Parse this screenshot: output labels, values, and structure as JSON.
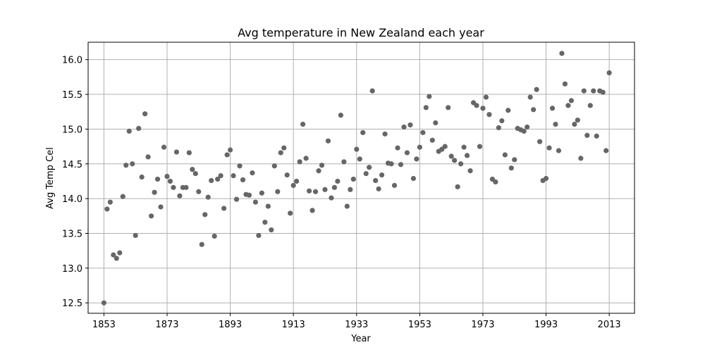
{
  "chart_data": {
    "type": "scatter",
    "title": "Avg temperature in New Zealand each year",
    "xlabel": "Year",
    "ylabel": "Avg Temp Cel",
    "xlim": [
      1848,
      2021
    ],
    "ylim": [
      12.35,
      16.25
    ],
    "xticks": [
      1853,
      1873,
      1893,
      1913,
      1933,
      1953,
      1973,
      1993,
      2013
    ],
    "yticks": [
      12.5,
      13.0,
      13.5,
      14.0,
      14.5,
      15.0,
      15.5,
      16.0
    ],
    "ytick_labels": [
      "12.5",
      "13.0",
      "13.5",
      "14.0",
      "14.5",
      "15.0",
      "15.5",
      "16.0"
    ],
    "grid": true,
    "marker_color": "#666666",
    "series": [
      {
        "x": [
          1853,
          1854,
          1855,
          1856,
          1857,
          1858,
          1859,
          1860,
          1861,
          1862,
          1863,
          1864,
          1865,
          1866,
          1867,
          1868,
          1869,
          1870,
          1871,
          1872,
          1873,
          1874,
          1875,
          1876,
          1877,
          1878,
          1879,
          1880,
          1881,
          1882,
          1883,
          1884,
          1885,
          1886,
          1887,
          1888,
          1889,
          1890,
          1891,
          1892,
          1893,
          1894,
          1895,
          1896,
          1897,
          1898,
          1899,
          1900,
          1901,
          1902,
          1903,
          1904,
          1905,
          1906,
          1907,
          1908,
          1909,
          1910,
          1911,
          1912,
          1913,
          1914,
          1915,
          1916,
          1917,
          1918,
          1919,
          1920,
          1921,
          1922,
          1923,
          1924,
          1925,
          1926,
          1927,
          1928,
          1929,
          1930,
          1931,
          1932,
          1933,
          1934,
          1935,
          1936,
          1937,
          1938,
          1939,
          1940,
          1941,
          1942,
          1943,
          1944,
          1945,
          1946,
          1947,
          1948,
          1949,
          1950,
          1951,
          1952,
          1953,
          1954,
          1955,
          1956,
          1957,
          1958,
          1959,
          1960,
          1961,
          1962,
          1963,
          1964,
          1965,
          1966,
          1967,
          1968,
          1969,
          1970,
          1971,
          1972,
          1973,
          1974,
          1975,
          1976,
          1977,
          1978,
          1979,
          1980,
          1981,
          1982,
          1983,
          1984,
          1985,
          1986,
          1987,
          1988,
          1989,
          1990,
          1991,
          1992,
          1993,
          1994,
          1995,
          1996,
          1997,
          1998,
          1999,
          2000,
          2001,
          2002,
          2003,
          2004,
          2005,
          2006,
          2007,
          2008,
          2009,
          2010,
          2011,
          2012,
          2013
        ],
        "y": [
          12.5,
          13.85,
          13.95,
          13.19,
          13.14,
          13.22,
          14.03,
          14.48,
          14.97,
          14.5,
          13.47,
          15.01,
          14.31,
          15.22,
          14.6,
          13.75,
          14.09,
          14.28,
          13.88,
          14.74,
          14.32,
          14.25,
          14.16,
          14.67,
          14.04,
          14.16,
          14.16,
          14.66,
          14.42,
          14.36,
          14.1,
          13.34,
          13.77,
          14.02,
          14.26,
          13.46,
          14.28,
          14.33,
          13.86,
          14.63,
          14.7,
          14.33,
          13.99,
          14.47,
          14.27,
          14.06,
          14.05,
          14.37,
          13.95,
          13.47,
          14.08,
          13.66,
          13.89,
          13.55,
          14.47,
          14.1,
          14.66,
          14.73,
          14.34,
          13.79,
          14.19,
          14.25,
          14.53,
          15.07,
          14.58,
          14.11,
          13.83,
          14.1,
          14.4,
          14.48,
          14.13,
          14.83,
          14.01,
          14.16,
          14.25,
          15.2,
          14.53,
          13.89,
          14.13,
          14.28,
          14.71,
          14.57,
          14.95,
          14.36,
          14.45,
          15.55,
          14.26,
          14.14,
          14.34,
          14.93,
          14.51,
          14.5,
          14.19,
          14.73,
          14.49,
          15.03,
          14.66,
          15.06,
          14.29,
          14.57,
          14.74,
          14.95,
          15.31,
          15.47,
          14.84,
          15.09,
          14.68,
          14.71,
          14.75,
          15.31,
          14.61,
          14.55,
          14.17,
          14.5,
          14.74,
          14.62,
          14.4,
          15.38,
          15.34,
          14.75,
          15.3,
          15.46,
          15.21,
          14.28,
          14.24,
          15.02,
          15.12,
          14.63,
          15.27,
          14.44,
          14.56,
          15.01,
          14.99,
          14.97,
          15.03,
          15.46,
          15.28,
          15.57,
          14.82,
          14.26,
          14.29,
          14.73,
          15.3,
          15.07,
          14.69,
          16.09,
          15.65,
          15.34,
          15.41,
          15.07,
          15.13,
          14.58,
          15.55,
          14.91,
          15.34,
          15.55,
          14.9,
          15.55,
          15.53,
          14.69,
          15.81
        ]
      }
    ]
  }
}
